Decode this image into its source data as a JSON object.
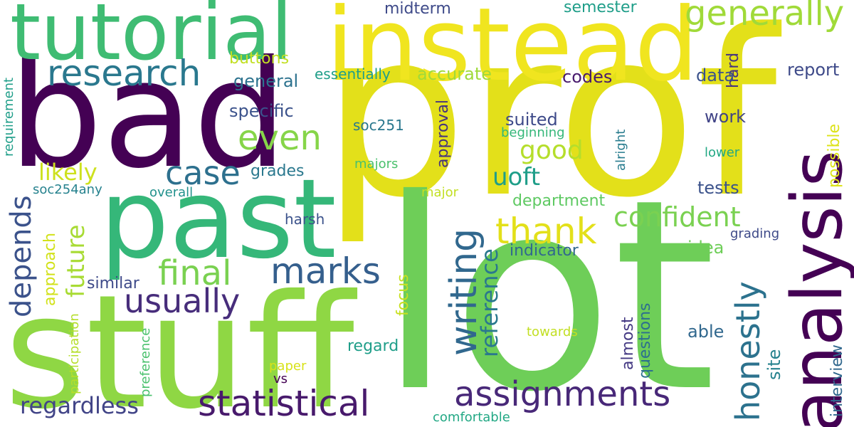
{
  "palette": {
    "dark_purple": "#440154",
    "purple": "#482878",
    "indigo": "#3e4a89",
    "blue": "#31688e",
    "steel": "#26828e",
    "teal": "#1f9e89",
    "green": "#35b779",
    "light_green": "#6ece58",
    "lime": "#b5de2b",
    "yellow": "#e3e01a"
  },
  "words": [
    {
      "text": "prof",
      "color": "#e3e01a"
    },
    {
      "text": "lot",
      "color": "#6ece58"
    },
    {
      "text": "bad",
      "color": "#440154"
    },
    {
      "text": "stuff",
      "color": "#8fd744"
    },
    {
      "text": "instead",
      "color": "#f0e51f"
    },
    {
      "text": "tutorial",
      "color": "#3fbc73"
    },
    {
      "text": "past",
      "color": "#35b779"
    },
    {
      "text": "analysis",
      "color": "#440154"
    },
    {
      "text": "research",
      "color": "#2a788e"
    },
    {
      "text": "generally",
      "color": "#a0da39"
    },
    {
      "text": "assignments",
      "color": "#482878"
    },
    {
      "text": "statistical",
      "color": "#481a6c"
    },
    {
      "text": "writing",
      "color": "#31688e"
    },
    {
      "text": "honestly",
      "color": "#2c728e"
    },
    {
      "text": "marks",
      "color": "#355f8d"
    },
    {
      "text": "final",
      "color": "#7ad151"
    },
    {
      "text": "thank",
      "color": "#e3e01a"
    },
    {
      "text": "usually",
      "color": "#472d7b"
    },
    {
      "text": "even",
      "color": "#86d549"
    },
    {
      "text": "case",
      "color": "#2d708e"
    },
    {
      "text": "confident",
      "color": "#7ad151"
    },
    {
      "text": "depends",
      "color": "#3b528b"
    },
    {
      "text": "regardless",
      "color": "#414487"
    },
    {
      "text": "good",
      "color": "#b5de2b"
    },
    {
      "text": "future",
      "color": "#a8db34"
    },
    {
      "text": "reference",
      "color": "#2a788e"
    },
    {
      "text": "uoft",
      "color": "#1f9e89"
    },
    {
      "text": "likely",
      "color": "#cde11d"
    },
    {
      "text": "interview",
      "color": "#31688e"
    },
    {
      "text": "site",
      "color": "#26828e"
    },
    {
      "text": "possible",
      "color": "#dde318"
    },
    {
      "text": "report",
      "color": "#3e4a89"
    },
    {
      "text": "work",
      "color": "#414487"
    },
    {
      "text": "midterm",
      "color": "#3e4a89"
    },
    {
      "text": "semester",
      "color": "#1f9e89"
    },
    {
      "text": "hard",
      "color": "#46337e"
    },
    {
      "text": "data",
      "color": "#3b528b"
    },
    {
      "text": "buttons",
      "color": "#c2df23"
    },
    {
      "text": "codes",
      "color": "#481a6c"
    },
    {
      "text": "accurate",
      "color": "#a0da39"
    },
    {
      "text": "general",
      "color": "#2c728e"
    },
    {
      "text": "essentially",
      "color": "#1f9e89"
    },
    {
      "text": "requirement",
      "color": "#1f9e89"
    },
    {
      "text": "specific",
      "color": "#3b528b"
    },
    {
      "text": "soc251",
      "color": "#2a788e"
    },
    {
      "text": "suited",
      "color": "#3e4a89"
    },
    {
      "text": "approval",
      "color": "#46337e"
    },
    {
      "text": "beginning",
      "color": "#35b779"
    },
    {
      "text": "alright",
      "color": "#287c8e"
    },
    {
      "text": "lower",
      "color": "#22a884"
    },
    {
      "text": "grades",
      "color": "#2a788e"
    },
    {
      "text": "majors",
      "color": "#4ac16d"
    },
    {
      "text": "soc254any",
      "color": "#26828e"
    },
    {
      "text": "overall",
      "color": "#21918c"
    },
    {
      "text": "major",
      "color": "#c2df23"
    },
    {
      "text": "department",
      "color": "#5ec962"
    },
    {
      "text": "tests",
      "color": "#3b528b"
    },
    {
      "text": "approach",
      "color": "#d2e21b"
    },
    {
      "text": "harsh",
      "color": "#3b528b"
    },
    {
      "text": "grading",
      "color": "#3e4a89"
    },
    {
      "text": "idea",
      "color": "#6ece58"
    },
    {
      "text": "indicator",
      "color": "#31688e"
    },
    {
      "text": "similar",
      "color": "#3e4a89"
    },
    {
      "text": "focus",
      "color": "#c8e020"
    },
    {
      "text": "almost",
      "color": "#443983"
    },
    {
      "text": "questions",
      "color": "#2d708e"
    },
    {
      "text": "able",
      "color": "#31688e"
    },
    {
      "text": "towards",
      "color": "#c2df23"
    },
    {
      "text": "regard",
      "color": "#1f9e89"
    },
    {
      "text": "participation",
      "color": "#b5de2b"
    },
    {
      "text": "preference",
      "color": "#4ac16d"
    },
    {
      "text": "paper",
      "color": "#d8e219"
    },
    {
      "text": "vs",
      "color": "#440154"
    },
    {
      "text": "comfortable",
      "color": "#22a884"
    }
  ]
}
